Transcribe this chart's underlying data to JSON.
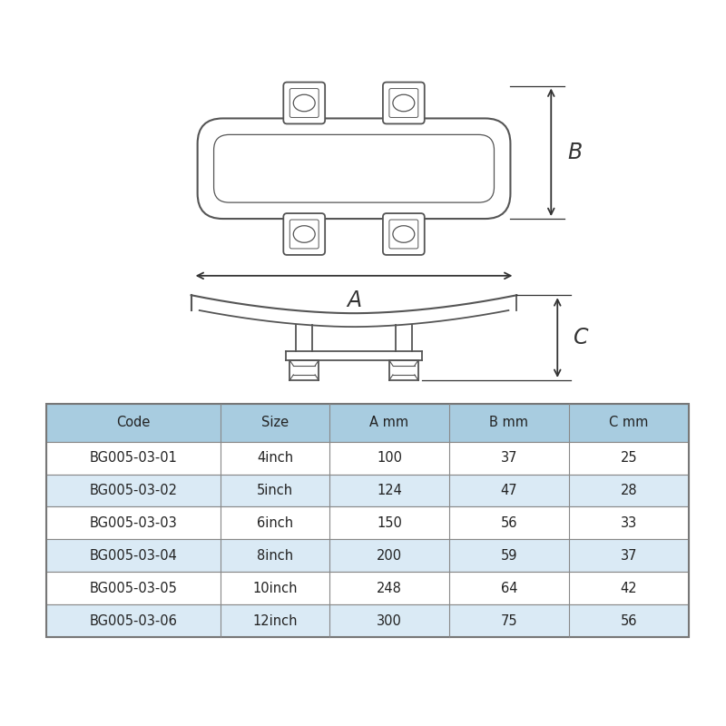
{
  "background_color": "#ffffff",
  "table_header_color": "#a8cce0",
  "table_headers": [
    "Code",
    "Size",
    "A mm",
    "B mm",
    "C mm"
  ],
  "table_data": [
    [
      "BG005-03-01",
      "4inch",
      "100",
      "37",
      "25"
    ],
    [
      "BG005-03-02",
      "5inch",
      "124",
      "47",
      "28"
    ],
    [
      "BG005-03-03",
      "6inch",
      "150",
      "56",
      "33"
    ],
    [
      "BG005-03-04",
      "8inch",
      "200",
      "59",
      "37"
    ],
    [
      "BG005-03-05",
      "10inch",
      "248",
      "64",
      "42"
    ],
    [
      "BG005-03-06",
      "12inch",
      "300",
      "75",
      "56"
    ]
  ],
  "line_color": "#555555",
  "dim_line_color": "#333333",
  "text_color": "#333333",
  "label_A": "A",
  "label_B": "B",
  "label_C": "C",
  "col_widths": [
    1.6,
    1.0,
    1.1,
    1.1,
    1.1
  ]
}
